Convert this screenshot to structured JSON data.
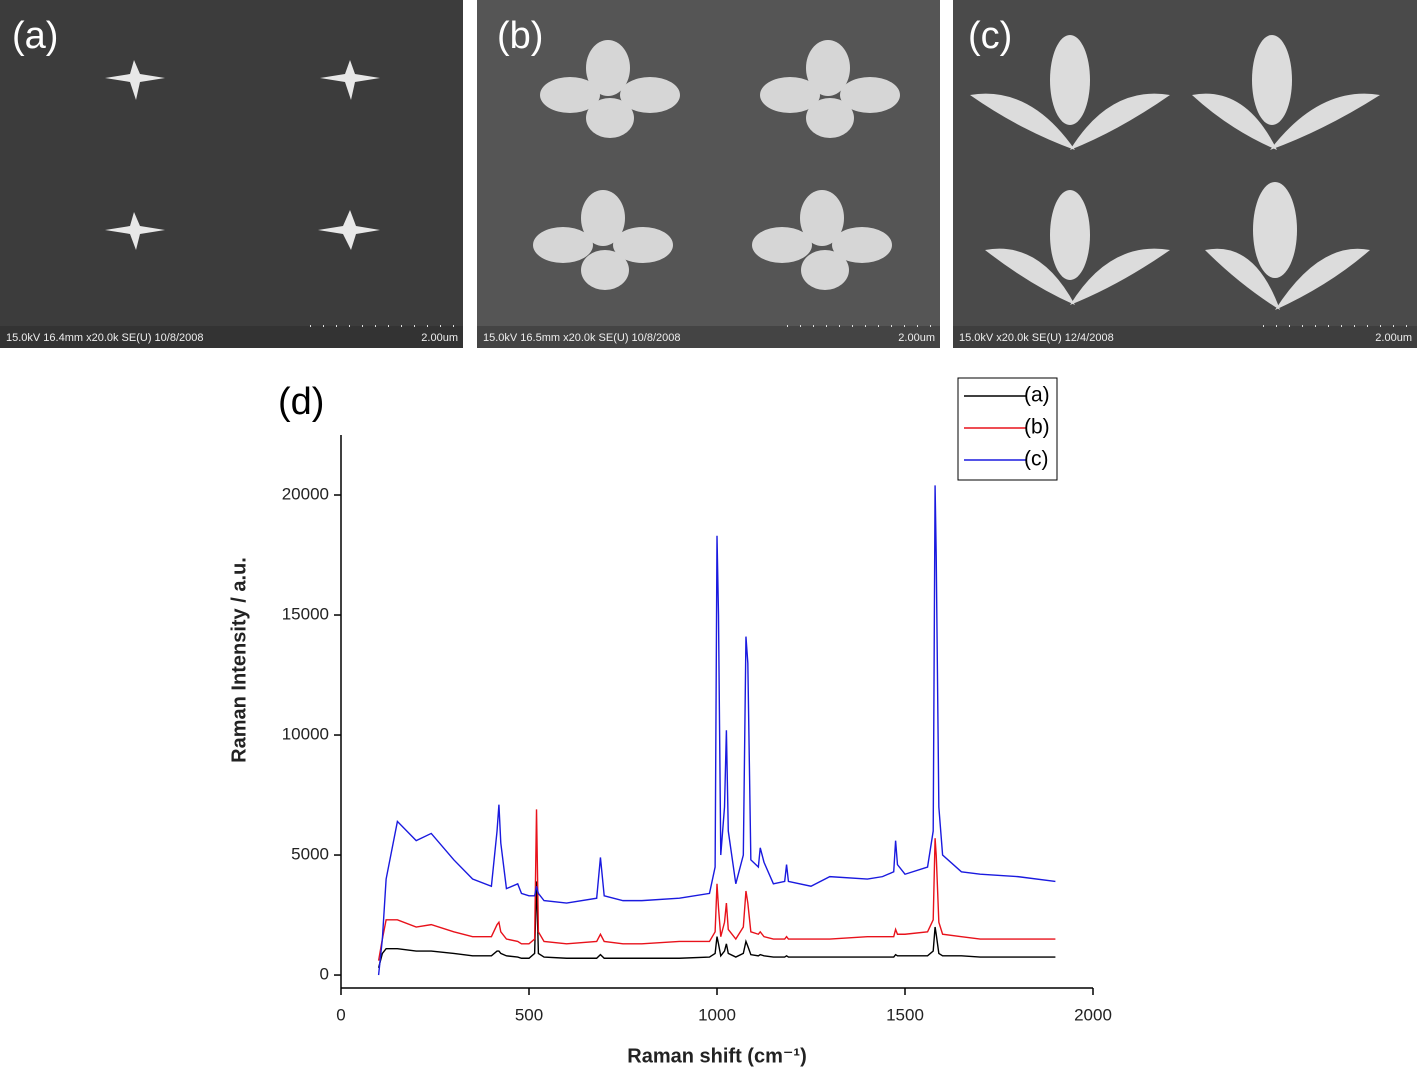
{
  "panels": [
    {
      "label": "(a)",
      "footer": "15.0kV 16.4mm x20.0k SE(U) 10/8/2008",
      "scale": "2.00um"
    },
    {
      "label": "(b)",
      "footer": "15.0kV 16.5mm x20.0k SE(U) 10/8/2008",
      "scale": "2.00um"
    },
    {
      "label": "(c)",
      "footer": "15.0kV x20.0k SE(U) 12/4/2008",
      "scale": "2.00um"
    }
  ],
  "chart_data": {
    "type": "line",
    "panel_label": "(d)",
    "x_label": "Raman shift (cm⁻¹)",
    "y_label": "Raman Intensity / a.u.",
    "xlim": [
      0,
      2000
    ],
    "xticks": [
      0,
      500,
      1000,
      1500,
      2000
    ],
    "ylim": [
      -540,
      22500
    ],
    "yticks": [
      0,
      5000,
      10000,
      15000,
      20000
    ],
    "legend": "top-right",
    "x": [
      100,
      110,
      120,
      150,
      200,
      240,
      300,
      350,
      400,
      415,
      420,
      425,
      440,
      470,
      480,
      500,
      515,
      520,
      525,
      540,
      600,
      680,
      690,
      700,
      750,
      800,
      900,
      980,
      995,
      1000,
      1004,
      1010,
      1020,
      1025,
      1030,
      1050,
      1070,
      1077,
      1082,
      1090,
      1110,
      1115,
      1125,
      1150,
      1180,
      1185,
      1190,
      1250,
      1300,
      1400,
      1440,
      1470,
      1475,
      1480,
      1500,
      1560,
      1575,
      1580,
      1583,
      1590,
      1600,
      1650,
      1700,
      1800,
      1900
    ],
    "series": [
      {
        "name": "(a)",
        "color": "#000000",
        "values": [
          300,
          900,
          1100,
          1100,
          1000,
          1000,
          900,
          800,
          800,
          1000,
          1000,
          900,
          800,
          750,
          700,
          700,
          900,
          3900,
          900,
          750,
          700,
          700,
          850,
          700,
          700,
          700,
          700,
          750,
          900,
          1600,
          1300,
          800,
          1000,
          1300,
          900,
          750,
          900,
          1400,
          1200,
          850,
          800,
          850,
          800,
          750,
          750,
          800,
          750,
          750,
          750,
          750,
          750,
          750,
          850,
          800,
          800,
          800,
          1000,
          2000,
          1700,
          900,
          800,
          800,
          750,
          750,
          750
        ]
      },
      {
        "name": "(b)",
        "color": "#e8121b",
        "values": [
          600,
          1500,
          2300,
          2300,
          2000,
          2100,
          1800,
          1600,
          1600,
          2100,
          2200,
          1800,
          1500,
          1400,
          1300,
          1300,
          1500,
          6900,
          1800,
          1400,
          1300,
          1400,
          1700,
          1400,
          1300,
          1300,
          1400,
          1400,
          1800,
          3800,
          2800,
          1600,
          2200,
          3000,
          1900,
          1500,
          2000,
          3500,
          3000,
          1800,
          1700,
          1800,
          1600,
          1500,
          1500,
          1600,
          1500,
          1500,
          1500,
          1600,
          1600,
          1600,
          1900,
          1700,
          1700,
          1800,
          2300,
          5700,
          5000,
          2200,
          1700,
          1600,
          1500,
          1500,
          1500
        ]
      },
      {
        "name": "(c)",
        "color": "#1a1adf",
        "values": [
          0,
          1500,
          4000,
          6400,
          5600,
          5900,
          4800,
          4000,
          3700,
          6000,
          7100,
          5500,
          3600,
          3800,
          3400,
          3300,
          3300,
          3700,
          3400,
          3100,
          3000,
          3200,
          4900,
          3300,
          3100,
          3100,
          3200,
          3400,
          4500,
          18300,
          15000,
          5000,
          7000,
          10200,
          6000,
          3800,
          5000,
          14100,
          13000,
          4800,
          4500,
          5300,
          4700,
          3800,
          3900,
          4600,
          3900,
          3700,
          4100,
          4000,
          4100,
          4300,
          5600,
          4600,
          4200,
          4500,
          6000,
          20400,
          17500,
          7000,
          5000,
          4300,
          4200,
          4100,
          3900
        ]
      }
    ]
  }
}
